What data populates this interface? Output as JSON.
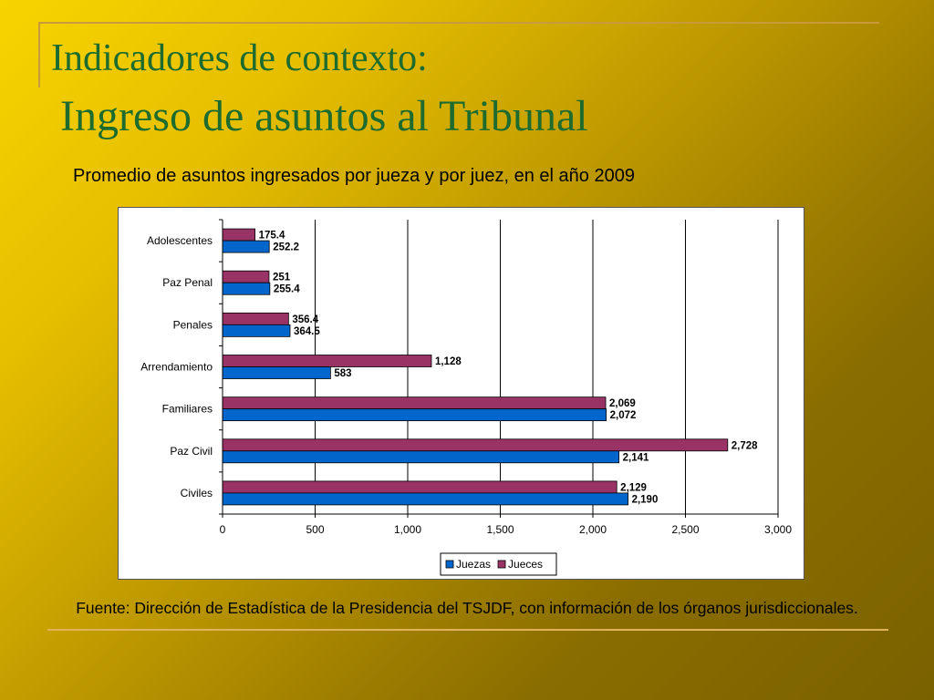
{
  "slide": {
    "title_line1": "Indicadores de contexto:",
    "title_line2": "Ingreso de asuntos al Tribunal",
    "subtitle": "Promedio de asuntos ingresados por jueza y por juez, en el año 2009",
    "footer": "Fuente: Dirección de Estadística de la Presidencia del TSJDF, con información de los órganos jurisdiccionales."
  },
  "chart_data": {
    "type": "bar",
    "orientation": "horizontal",
    "title": "",
    "xlabel": "",
    "ylabel": "",
    "categories": [
      "Adolescentes",
      "Paz Penal",
      "Penales",
      "Arrendamiento",
      "Familiares",
      "Paz Civil",
      "Civiles"
    ],
    "series": [
      {
        "name": "Jueces",
        "color": "#993366",
        "values": [
          175.4,
          251,
          356.4,
          1128,
          2069,
          2728,
          2129
        ],
        "labels": [
          "175.4",
          "251",
          "356.4",
          "1,128",
          "2,069",
          "2,728",
          "2,129"
        ]
      },
      {
        "name": "Juezas",
        "color": "#0066cc",
        "values": [
          252.2,
          255.4,
          364.5,
          583,
          2072,
          2141,
          2190
        ],
        "labels": [
          "252.2",
          "255.4",
          "364.5",
          "583",
          "2,072",
          "2,141",
          "2,190"
        ]
      }
    ],
    "xlim": [
      0,
      3000
    ],
    "x_ticks": [
      0,
      500,
      1000,
      1500,
      2000,
      2500,
      3000
    ],
    "x_tick_labels": [
      "0",
      "500",
      "1,000",
      "1,500",
      "2,000",
      "2,500",
      "3,000"
    ],
    "grid": "vertical",
    "legend": {
      "position": "bottom",
      "entries": [
        {
          "name": "Juezas",
          "color": "#0066cc"
        },
        {
          "name": "Jueces",
          "color": "#993366"
        }
      ]
    }
  }
}
